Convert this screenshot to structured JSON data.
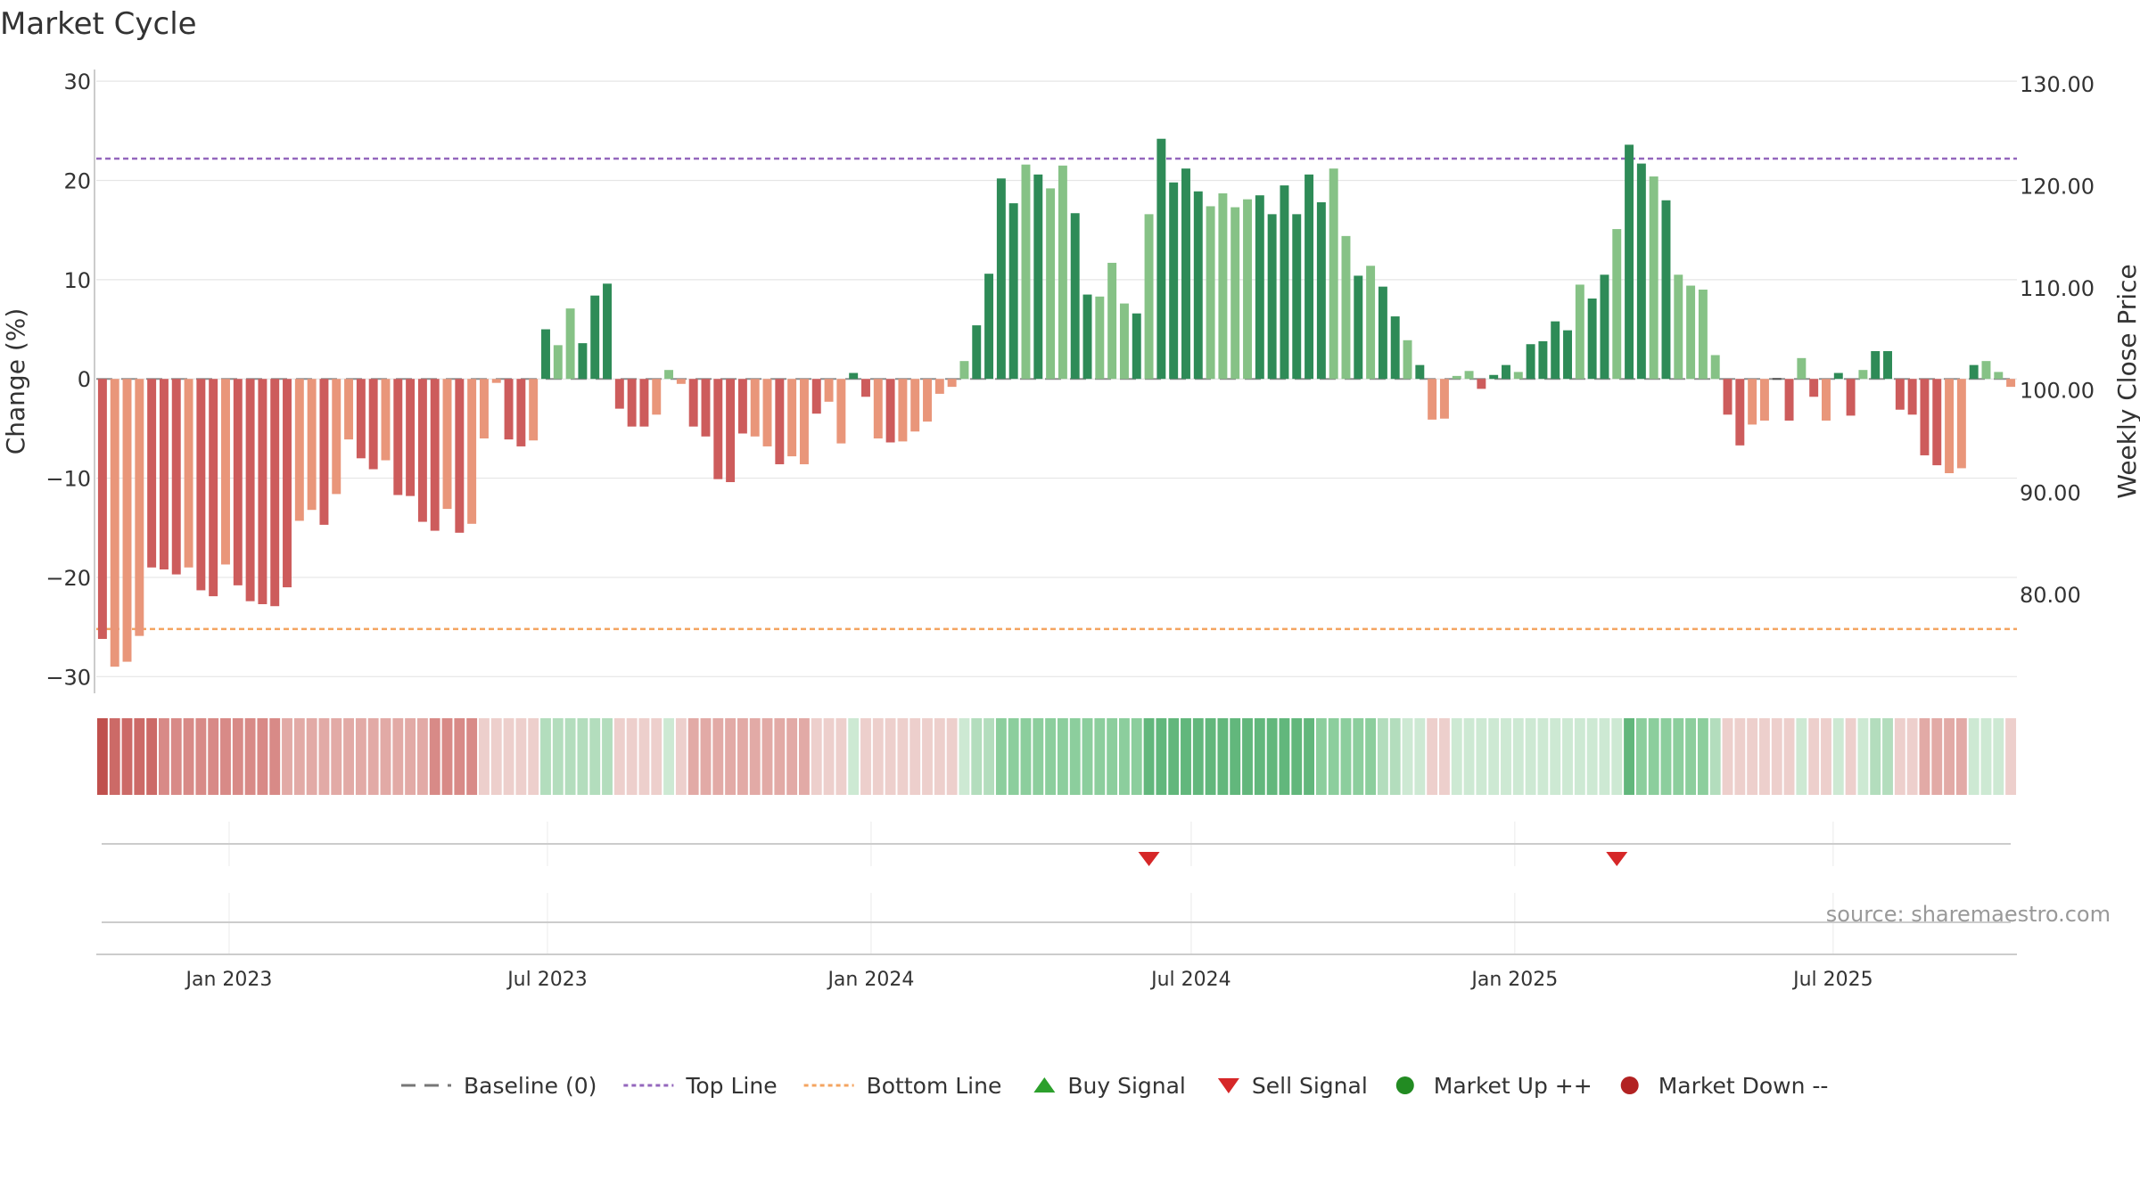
{
  "title": "Market Cycle",
  "source": "source: sharemaestro.com",
  "legend": {
    "items": [
      {
        "key": "baseline",
        "label": "Baseline (0)",
        "icon": "dash-line-icon",
        "color": "#777777"
      },
      {
        "key": "top",
        "label": "Top Line",
        "icon": "dotted-line-icon",
        "color": "#9467bd"
      },
      {
        "key": "bottom",
        "label": "Bottom Line",
        "icon": "dotted-line-icon",
        "color": "#f0a060"
      },
      {
        "key": "buy",
        "label": "Buy Signal",
        "icon": "triangle-up-icon",
        "color": "#2ca02c"
      },
      {
        "key": "sell",
        "label": "Sell Signal",
        "icon": "triangle-down-icon",
        "color": "#d62728"
      },
      {
        "key": "up",
        "label": "Market Up ++",
        "icon": "circle-icon",
        "color": "#228b22"
      },
      {
        "key": "down",
        "label": "Market Down --",
        "icon": "circle-icon",
        "color": "#b22222"
      }
    ]
  },
  "colors": {
    "dark_green": "#2e8b57",
    "light_green": "#86c286",
    "dark_red": "#cd5c5c",
    "light_red": "#e9967a",
    "top_line": "#9467bd",
    "bottom_line": "#f4a460",
    "grid": "#e6e6e6",
    "axis_text": "#333333",
    "source_text": "#999999"
  },
  "chart_data": {
    "type": "bar",
    "x_start": "2022-10-21",
    "x_end": "2025-09-19",
    "x_step_days": 7,
    "ylabel_left": "Change (%)",
    "ylabel_right": "Weekly Close Price",
    "ylim_left": [
      -31.5,
      31
    ],
    "ylim_right": [
      70.5,
      131.2
    ],
    "yticks_left": [
      "30",
      "20",
      "10",
      "0",
      "−10",
      "−20",
      "−30"
    ],
    "yticks_left_values": [
      30,
      20,
      10,
      0,
      -10,
      -20,
      -30
    ],
    "yticks_right": [
      "130.00",
      "120.00",
      "110.00",
      "100.00",
      "90.00",
      "80.00"
    ],
    "yticks_right_values": [
      130,
      120,
      110,
      100,
      90,
      80
    ],
    "xticks": [
      {
        "label": "Jan 2023",
        "date": "2023-01-01"
      },
      {
        "label": "Jul 2023",
        "date": "2023-07-01"
      },
      {
        "label": "Jan 2024",
        "date": "2024-01-01"
      },
      {
        "label": "Jul 2024",
        "date": "2024-07-01"
      },
      {
        "label": "Jan 2025",
        "date": "2025-01-01"
      },
      {
        "label": "Jul 2025",
        "date": "2025-07-01"
      }
    ],
    "top_line": 22.2,
    "bottom_line": -25.2,
    "values": [
      -26.2,
      -29.0,
      -28.5,
      -25.9,
      -19.0,
      -19.2,
      -19.7,
      -19.0,
      -21.3,
      -21.9,
      -18.7,
      -20.8,
      -22.4,
      -22.7,
      -22.9,
      -21.0,
      -14.3,
      -13.2,
      -14.7,
      -11.6,
      -6.1,
      -8.0,
      -9.1,
      -8.2,
      -11.7,
      -11.8,
      -14.4,
      -15.3,
      -13.1,
      -15.5,
      -14.6,
      -6.0,
      -0.4,
      -6.1,
      -6.8,
      -6.2,
      5.0,
      3.4,
      7.1,
      3.6,
      8.4,
      9.6,
      -3.0,
      -4.8,
      -4.8,
      -3.6,
      0.9,
      -0.5,
      -4.8,
      -5.8,
      -10.1,
      -10.4,
      -5.5,
      -5.8,
      -6.8,
      -8.6,
      -7.8,
      -8.6,
      -3.5,
      -2.3,
      -6.5,
      0.6,
      -1.8,
      -6.0,
      -6.4,
      -6.3,
      -5.3,
      -4.3,
      -1.5,
      -0.8,
      1.8,
      5.4,
      10.6,
      20.2,
      17.7,
      21.6,
      20.6,
      19.2,
      21.5,
      16.7,
      8.5,
      8.3,
      11.7,
      7.6,
      6.6,
      16.6,
      24.2,
      19.8,
      21.2,
      18.9,
      17.4,
      18.7,
      17.3,
      18.1,
      18.5,
      16.6,
      19.5,
      16.6,
      20.6,
      17.8,
      21.2,
      14.4,
      10.4,
      11.4,
      9.3,
      6.3,
      3.9,
      1.4,
      -4.1,
      -4.0,
      0.3,
      0.8,
      -1.0,
      0.4,
      1.4,
      0.7,
      3.5,
      3.8,
      5.8,
      4.9,
      9.5,
      8.1,
      10.5,
      15.1,
      23.6,
      21.7,
      20.4,
      18.0,
      10.5,
      9.4,
      9.0,
      2.4,
      -3.6,
      -6.7,
      -4.6,
      -4.2,
      0,
      -4.2,
      2.1,
      -1.8,
      -4.2,
      0.6,
      -3.7,
      0.9,
      2.8,
      2.8,
      -3.1,
      -3.6,
      -7.7,
      -8.7,
      -9.5,
      -9.0,
      1.4,
      1.8,
      0.7,
      -0.8
    ],
    "bar_styles": "DLLLDDDLDDLDDDDDLLDLLDDLDDDDLDLLLDDLDLLDDDDDDLLLDDDDDLLDLLDLLDDLDLLLLLLDDDDLDLLDDLLLDLDDDDLLLLDDDDDDLLDLDDLDLLLLDDDLDDDDLDDLDDLDLLLLDDLLLDLDLDDLDDDDDDLLDLLLDDD",
    "heat_levels": [
      -5,
      -4,
      -4,
      -4,
      -4,
      -3,
      -3,
      -3,
      -3,
      -3,
      -3,
      -3,
      -3,
      -3,
      -3,
      -2,
      -2,
      -2,
      -2,
      -2,
      -2,
      -2,
      -2,
      -2,
      -2,
      -2,
      -2,
      -3,
      -3,
      -3,
      -3,
      -1,
      -1,
      -1,
      -1,
      -1,
      2,
      2,
      2,
      2,
      2,
      2,
      -1,
      -1,
      -1,
      -1,
      1,
      -1,
      -2,
      -2,
      -2,
      -2,
      -2,
      -2,
      -2,
      -2,
      -2,
      -2,
      -1,
      -1,
      -1,
      1,
      -1,
      -1,
      -1,
      -1,
      -1,
      -1,
      -1,
      -1,
      1,
      2,
      2,
      3,
      3,
      3,
      3,
      3,
      3,
      3,
      3,
      3,
      3,
      3,
      3,
      4,
      4,
      4,
      4,
      4,
      4,
      4,
      4,
      4,
      4,
      4,
      4,
      4,
      4,
      3,
      3,
      3,
      3,
      3,
      2,
      2,
      1,
      1,
      -1,
      -1,
      1,
      1,
      1,
      1,
      1,
      1,
      1,
      1,
      1,
      1,
      1,
      1,
      1,
      1,
      4,
      3,
      3,
      3,
      3,
      3,
      3,
      2,
      -1,
      -1,
      -1,
      -1,
      -1,
      -1,
      1,
      -1,
      -1,
      1,
      -1,
      1,
      2,
      2,
      -1,
      -1,
      -2,
      -2,
      -2,
      -2,
      1,
      1,
      1,
      -1
    ],
    "sell_signals": [
      "2024-06-07",
      "2025-02-28"
    ],
    "buy_signals": []
  }
}
